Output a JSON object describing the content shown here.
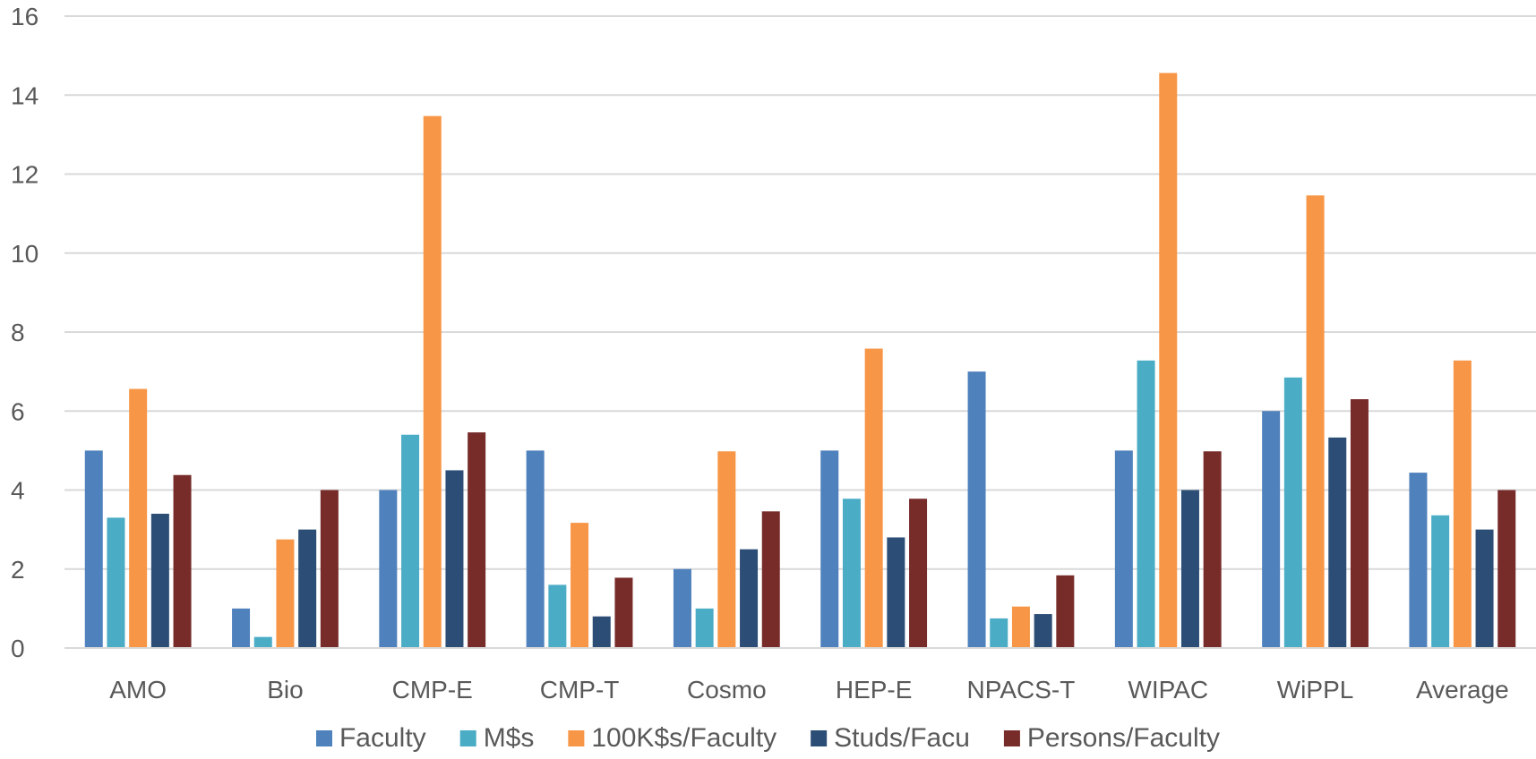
{
  "chart_data": {
    "type": "bar",
    "categories": [
      "AMO",
      "Bio",
      "CMP-E",
      "CMP-T",
      "Cosmo",
      "HEP-E",
      "NPACS-T",
      "WIPAC",
      "WiPPL",
      "Average"
    ],
    "series": [
      {
        "name": "Faculty",
        "color": "#4f81bd",
        "values": [
          5,
          1,
          4,
          5,
          2,
          5,
          7,
          5,
          6,
          4.44
        ]
      },
      {
        "name": "M$s",
        "color": "#4bacc6",
        "values": [
          3.3,
          0.28,
          5.4,
          1.6,
          1.0,
          3.78,
          0.75,
          7.28,
          6.85,
          3.36
        ]
      },
      {
        "name": "100K$s/Faculty",
        "color": "#f79646",
        "values": [
          6.56,
          2.75,
          13.47,
          3.17,
          4.98,
          7.58,
          1.05,
          14.56,
          11.46,
          7.28
        ]
      },
      {
        "name": "Studs/Facu",
        "color": "#2c4d75",
        "values": [
          3.4,
          3.0,
          4.5,
          0.8,
          2.5,
          2.8,
          0.86,
          4.0,
          5.33,
          3.0
        ]
      },
      {
        "name": "Persons/Faculty",
        "color": "#772c2a",
        "values": [
          4.38,
          4.0,
          5.46,
          1.78,
          3.46,
          3.78,
          1.84,
          4.98,
          6.3,
          4.0
        ]
      }
    ],
    "yticks": [
      "0",
      "2",
      "4",
      "6",
      "8",
      "10",
      "12",
      "14",
      "16"
    ],
    "ylim": [
      0,
      16
    ],
    "grid": true,
    "legend_position": "bottom",
    "title": "",
    "xlabel": "",
    "ylabel": ""
  }
}
